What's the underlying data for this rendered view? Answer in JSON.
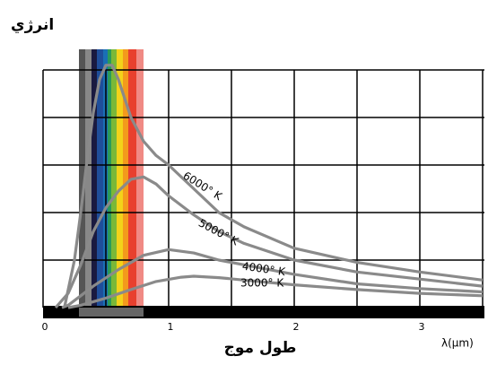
{
  "chart_data": {
    "type": "line",
    "y_label": "انرژي",
    "x_label": "طول موج",
    "x_unit": "λ(µm)",
    "xlim": [
      0,
      3.5
    ],
    "xticks": [
      0,
      1,
      2,
      3
    ],
    "x_minor_ticks": [
      0.5,
      1.5,
      2.5,
      3.5
    ],
    "ylim": [
      0,
      5
    ],
    "yticks": [
      0,
      1,
      2,
      3,
      4,
      5
    ],
    "grid": true,
    "series": [
      {
        "name": "6000° K",
        "color": "#8a8a8a",
        "x": [
          0.17,
          0.25,
          0.3,
          0.35,
          0.4,
          0.45,
          0.5,
          0.55,
          0.6,
          0.7,
          0.8,
          0.9,
          1.0,
          1.2,
          1.4,
          1.6,
          2.0,
          2.5,
          3.0,
          3.5
        ],
        "values": [
          0,
          1.0,
          2.0,
          3.1,
          4.1,
          4.8,
          5.1,
          5.1,
          4.8,
          4.0,
          3.5,
          3.2,
          3.0,
          2.5,
          2.0,
          1.7,
          1.25,
          0.95,
          0.75,
          0.58
        ]
      },
      {
        "name": "5000° K",
        "color": "#8a8a8a",
        "x": [
          0.1,
          0.2,
          0.3,
          0.4,
          0.5,
          0.6,
          0.7,
          0.8,
          0.9,
          1.0,
          1.2,
          1.4,
          1.6,
          2.0,
          2.5,
          3.0,
          3.5
        ],
        "values": [
          0,
          0.3,
          0.9,
          1.6,
          2.1,
          2.45,
          2.7,
          2.75,
          2.6,
          2.35,
          1.95,
          1.6,
          1.35,
          1.0,
          0.75,
          0.6,
          0.45
        ]
      },
      {
        "name": "4000° K",
        "color": "#8a8a8a",
        "x": [
          0.15,
          0.2,
          0.3,
          0.4,
          0.6,
          0.8,
          1.0,
          1.2,
          1.4,
          1.6,
          2.0,
          2.5,
          3.0,
          3.5
        ],
        "values": [
          0,
          0.05,
          0.25,
          0.45,
          0.8,
          1.1,
          1.22,
          1.15,
          1.0,
          0.9,
          0.7,
          0.5,
          0.4,
          0.33
        ]
      },
      {
        "name": "3000° K",
        "color": "#8a8a8a",
        "x": [
          0.2,
          0.3,
          0.5,
          0.7,
          0.9,
          1.1,
          1.2,
          1.4,
          1.6,
          2.0,
          2.5,
          3.0,
          3.5
        ],
        "values": [
          0,
          0.05,
          0.2,
          0.38,
          0.55,
          0.64,
          0.66,
          0.63,
          0.58,
          0.48,
          0.38,
          0.3,
          0.25
        ]
      }
    ]
  }
}
